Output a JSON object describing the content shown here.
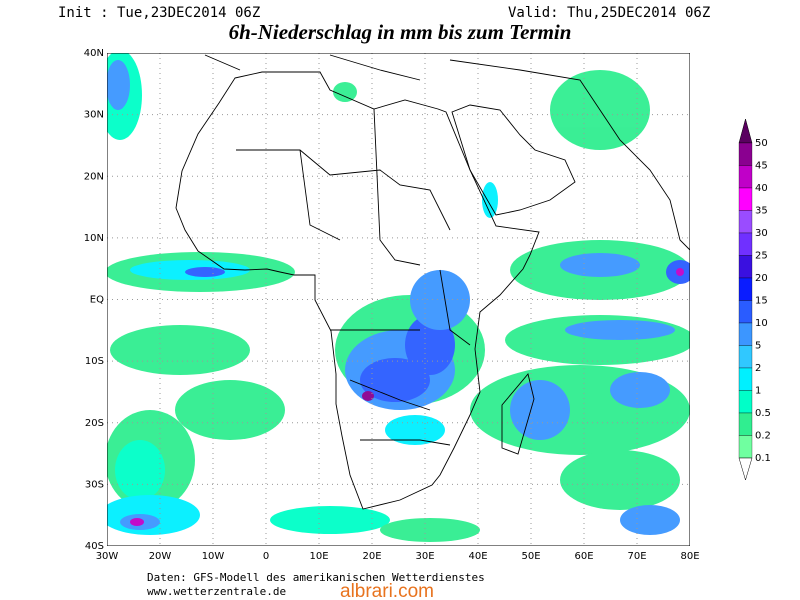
{
  "header": {
    "init": "Init : Tue,23DEC2014 06Z",
    "valid": "Valid: Thu,25DEC2014 06Z",
    "title": "6h-Niederschlag in mm bis zum Termin"
  },
  "map": {
    "x_labels": [
      "30W",
      "20W",
      "10W",
      "0",
      "10E",
      "20E",
      "30E",
      "40E",
      "50E",
      "60E",
      "70E",
      "80E"
    ],
    "y_labels": [
      "40N",
      "30N",
      "20N",
      "10N",
      "EQ",
      "10S",
      "20S",
      "30S",
      "40S"
    ]
  },
  "legend": {
    "labels": [
      "50",
      "45",
      "40",
      "35",
      "30",
      "25",
      "20",
      "15",
      "10",
      "5",
      "2",
      "1",
      "0.5",
      "0.2",
      "0.1"
    ],
    "colors": [
      "#5a0060",
      "#8a0090",
      "#c000c8",
      "#ff00ff",
      "#9a4cff",
      "#7030ff",
      "#3a10e0",
      "#0a1cff",
      "#2a5cff",
      "#3c96ff",
      "#30c8ff",
      "#00f0ff",
      "#00ffc8",
      "#30ee90",
      "#70ffa0"
    ]
  },
  "footer": {
    "line1": "Daten: GFS-Modell des amerikanischen Wetterdienstes",
    "line2": "www.wetterzentrale.de",
    "watermark": "albrari.com"
  }
}
